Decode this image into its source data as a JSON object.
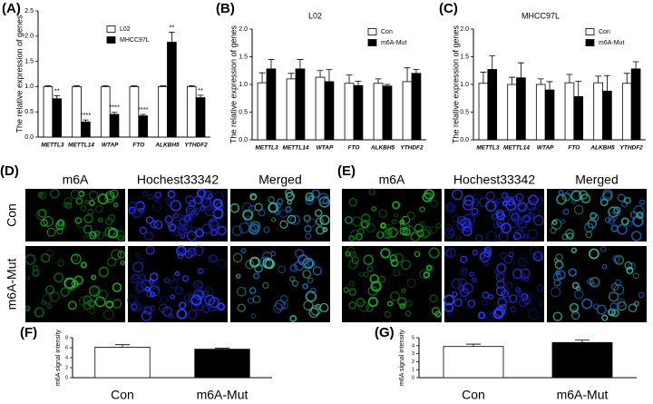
{
  "chart_data": [
    {
      "type": "bar",
      "panel": "(A)",
      "y_label": "The relative expression of genes",
      "categories": [
        "METTL3",
        "METTL14",
        "WTAP",
        "FTO",
        "ALKBH5",
        "YTHDF2"
      ],
      "series": [
        {
          "name": "L02",
          "color": "#ffffff",
          "values": [
            1,
            1,
            1,
            1,
            1,
            1
          ],
          "errors": [
            0.02,
            0.02,
            0.02,
            0.02,
            0.02,
            0.02
          ]
        },
        {
          "name": "MHCC97L",
          "color": "#000000",
          "values": [
            0.76,
            0.3,
            0.45,
            0.42,
            1.88,
            0.78
          ],
          "errors": [
            0.06,
            0.04,
            0.04,
            0.03,
            0.2,
            0.05
          ],
          "significance": [
            "**",
            "****",
            "****",
            "****",
            "**",
            "**"
          ]
        }
      ],
      "ylim": [
        0,
        2.5
      ],
      "yticks": [
        {
          "value": 0,
          "label": "0.0"
        },
        0.5,
        {
          "value": 1,
          "label": "1.0"
        },
        1.5,
        {
          "value": 2,
          "label": "2.0"
        },
        2.5
      ],
      "legend": "upper right"
    },
    {
      "type": "bar",
      "panel": "(B)",
      "title": "L02",
      "y_label": "The relative expression of genes",
      "categories": [
        "METTL3",
        "METTL14",
        "WTAP",
        "FTO",
        "ALKBH5",
        "YTHDF2"
      ],
      "series": [
        {
          "name": "Con",
          "color": "#ffffff",
          "values": [
            1.03,
            1.1,
            1.13,
            1.02,
            1.02,
            1.05
          ],
          "errors": [
            0.18,
            0.1,
            0.12,
            0.15,
            0.08,
            0.25
          ]
        },
        {
          "name": "m6A-Mut",
          "color": "#000000",
          "values": [
            1.28,
            1.28,
            1.05,
            0.98,
            0.97,
            1.2
          ],
          "errors": [
            0.17,
            0.17,
            0.22,
            0.08,
            0.03,
            0.07
          ]
        }
      ],
      "ylim": [
        0,
        2
      ],
      "yticks": [
        {
          "value": 0,
          "label": "0.0"
        },
        0.5,
        {
          "value": 1,
          "label": "1.0"
        },
        1.5,
        {
          "value": 2,
          "label": "2.0"
        }
      ],
      "legend": "upper right"
    },
    {
      "type": "bar",
      "panel": "(C)",
      "title": "MHCC97L",
      "y_label": "The relative expression of genes",
      "categories": [
        "METTL3",
        "METTL14",
        "WTAP",
        "FTO",
        "ALKBH5",
        "YTHDF2"
      ],
      "series": [
        {
          "name": "Con",
          "color": "#ffffff",
          "values": [
            1.02,
            1.0,
            1.0,
            1.03,
            1.03,
            1.02
          ],
          "errors": [
            0.2,
            0.13,
            0.1,
            0.15,
            0.12,
            0.18
          ]
        },
        {
          "name": "m6A-Mut",
          "color": "#000000",
          "values": [
            1.27,
            1.12,
            0.9,
            0.78,
            0.88,
            1.28
          ],
          "errors": [
            0.25,
            0.27,
            0.15,
            0.28,
            0.28,
            0.13
          ]
        }
      ],
      "ylim": [
        0,
        2
      ],
      "yticks": [
        {
          "value": 0,
          "label": "0.0"
        },
        0.5,
        {
          "value": 1,
          "label": "1.0"
        },
        1.5,
        {
          "value": 2,
          "label": "2.0"
        }
      ],
      "legend": "upper right"
    },
    {
      "type": "bar",
      "panel": "(F)",
      "y_label": "m6A signal intensity",
      "categories": [
        "Con",
        "m6A-Mut"
      ],
      "series": [
        {
          "name": null,
          "color": null,
          "colors": [
            "#ffffff",
            "#000000"
          ],
          "values": [
            6.1,
            5.7
          ],
          "errors": [
            0.5,
            0.2
          ]
        }
      ],
      "ylim": [
        0,
        8
      ],
      "yticks": [
        0,
        2,
        4,
        6,
        8
      ]
    },
    {
      "type": "bar",
      "panel": "(G)",
      "y_label": "m6A signal intensity",
      "categories": [
        "Con",
        "m6A-Mut"
      ],
      "series": [
        {
          "name": null,
          "color": null,
          "colors": [
            "#ffffff",
            "#000000"
          ],
          "values": [
            3.9,
            4.4
          ],
          "errors": [
            0.3,
            0.3
          ]
        }
      ],
      "ylim": [
        0,
        5
      ],
      "yticks": [
        0,
        1,
        2,
        3,
        4,
        5
      ]
    }
  ],
  "micrographs": [
    {
      "panel": "(D)",
      "columns": [
        "m6A",
        "Hochest33342",
        "Merged"
      ],
      "rows": [
        "Con",
        "m6A-Mut"
      ]
    },
    {
      "panel": "(E)",
      "columns": [
        "m6A",
        "Hochest33342",
        "Merged"
      ],
      "rows": [
        "Con",
        "m6A-Mut"
      ]
    }
  ]
}
